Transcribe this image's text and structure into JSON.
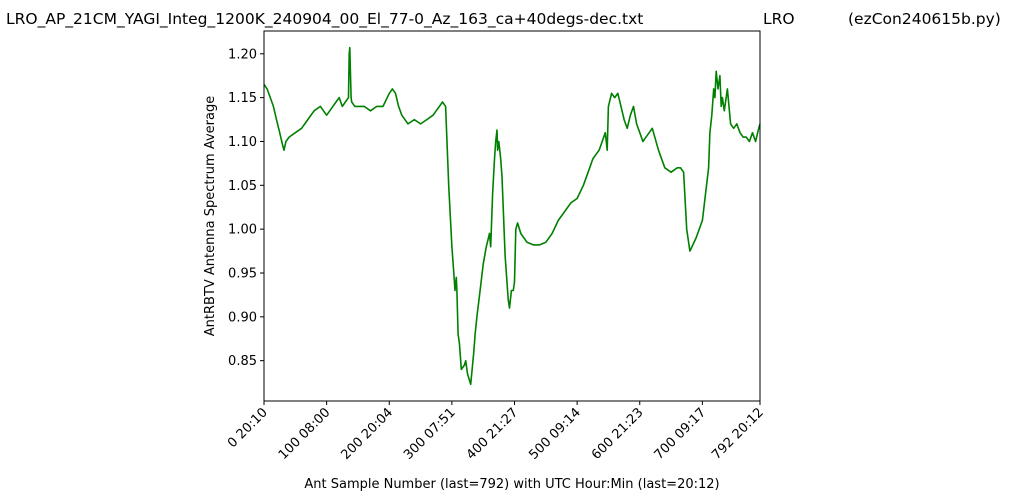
{
  "header": {
    "title_left": "LRO_AP_21CM_YAGI_Integ_1200K_240904_00_El_77-0_Az_163_ca+40degs-dec.txt",
    "title_mid": "LRO",
    "title_right": "(ezCon240615b.py)"
  },
  "chart_data": {
    "type": "line",
    "xlabel": "Ant Sample Number (last=792) with UTC Hour:Min (last=20:12)",
    "ylabel": "AntRBTV Antenna Spectrum Average",
    "xlim": [
      0,
      792
    ],
    "ylim": [
      0.804,
      1.226
    ],
    "x_ticks": [
      {
        "value": 0,
        "label": "0  20:10"
      },
      {
        "value": 100,
        "label": "100  08:00"
      },
      {
        "value": 200,
        "label": "200  20:04"
      },
      {
        "value": 300,
        "label": "300  07:51"
      },
      {
        "value": 400,
        "label": "400  21:27"
      },
      {
        "value": 500,
        "label": "500  09:14"
      },
      {
        "value": 600,
        "label": "600  21:23"
      },
      {
        "value": 700,
        "label": "700  09:17"
      },
      {
        "value": 792,
        "label": "792  20:12"
      }
    ],
    "y_ticks": [
      {
        "value": 0.85,
        "label": "0.85"
      },
      {
        "value": 0.9,
        "label": "0.90"
      },
      {
        "value": 0.95,
        "label": "0.95"
      },
      {
        "value": 1.0,
        "label": "1.00"
      },
      {
        "value": 1.05,
        "label": "1.05"
      },
      {
        "value": 1.1,
        "label": "1.10"
      },
      {
        "value": 1.15,
        "label": "1.15"
      },
      {
        "value": 1.2,
        "label": "1.20"
      }
    ],
    "grid": false,
    "series": [
      {
        "color": "#008000",
        "x": [
          0,
          5,
          10,
          15,
          20,
          25,
          30,
          32,
          35,
          40,
          50,
          60,
          70,
          80,
          90,
          95,
          100,
          105,
          110,
          115,
          120,
          125,
          130,
          135,
          136,
          137,
          138,
          139,
          140,
          145,
          150,
          160,
          170,
          180,
          190,
          200,
          205,
          210,
          215,
          220,
          225,
          230,
          240,
          250,
          260,
          270,
          275,
          280,
          285,
          290,
          295,
          300,
          303,
          305,
          307,
          308,
          310,
          312,
          315,
          320,
          322,
          325,
          330,
          335,
          337,
          340,
          345,
          350,
          355,
          360,
          362,
          365,
          368,
          370,
          372,
          373,
          375,
          378,
          380,
          385,
          390,
          392,
          395,
          398,
          400,
          402,
          405,
          410,
          420,
          430,
          440,
          450,
          460,
          470,
          480,
          490,
          500,
          510,
          520,
          525,
          530,
          535,
          540,
          545,
          548,
          550,
          555,
          560,
          565,
          570,
          575,
          580,
          585,
          590,
          595,
          600,
          605,
          610,
          615,
          620,
          630,
          640,
          650,
          660,
          665,
          670,
          672,
          675,
          680,
          690,
          700,
          705,
          710,
          712,
          715,
          718,
          720,
          722,
          725,
          728,
          730,
          732,
          735,
          740,
          745,
          750,
          755,
          760,
          765,
          770,
          775,
          780,
          785,
          790,
          792
        ],
        "values": [
          1.165,
          1.16,
          1.15,
          1.14,
          1.125,
          1.11,
          1.095,
          1.09,
          1.1,
          1.105,
          1.11,
          1.115,
          1.125,
          1.135,
          1.14,
          1.135,
          1.13,
          1.135,
          1.14,
          1.145,
          1.15,
          1.14,
          1.145,
          1.15,
          1.2,
          1.207,
          1.18,
          1.15,
          1.145,
          1.14,
          1.14,
          1.14,
          1.135,
          1.14,
          1.14,
          1.155,
          1.16,
          1.155,
          1.14,
          1.13,
          1.125,
          1.12,
          1.125,
          1.12,
          1.125,
          1.13,
          1.135,
          1.14,
          1.145,
          1.14,
          1.05,
          0.98,
          0.95,
          0.93,
          0.945,
          0.93,
          0.88,
          0.87,
          0.84,
          0.845,
          0.85,
          0.835,
          0.823,
          0.86,
          0.88,
          0.9,
          0.93,
          0.96,
          0.98,
          0.995,
          0.98,
          1.04,
          1.08,
          1.1,
          1.113,
          1.09,
          1.1,
          1.08,
          1.06,
          0.97,
          0.92,
          0.91,
          0.93,
          0.93,
          0.94,
          1.0,
          1.007,
          0.995,
          0.985,
          0.982,
          0.982,
          0.985,
          0.995,
          1.01,
          1.02,
          1.03,
          1.035,
          1.05,
          1.07,
          1.08,
          1.085,
          1.09,
          1.1,
          1.11,
          1.09,
          1.14,
          1.155,
          1.15,
          1.155,
          1.14,
          1.125,
          1.115,
          1.13,
          1.14,
          1.12,
          1.11,
          1.1,
          1.105,
          1.11,
          1.115,
          1.09,
          1.07,
          1.065,
          1.07,
          1.07,
          1.065,
          1.04,
          1.0,
          0.975,
          0.99,
          1.01,
          1.04,
          1.07,
          1.11,
          1.13,
          1.16,
          1.15,
          1.18,
          1.16,
          1.175,
          1.14,
          1.15,
          1.135,
          1.16,
          1.12,
          1.115,
          1.12,
          1.11,
          1.105,
          1.105,
          1.1,
          1.11,
          1.1,
          1.115,
          1.12
        ]
      }
    ]
  }
}
